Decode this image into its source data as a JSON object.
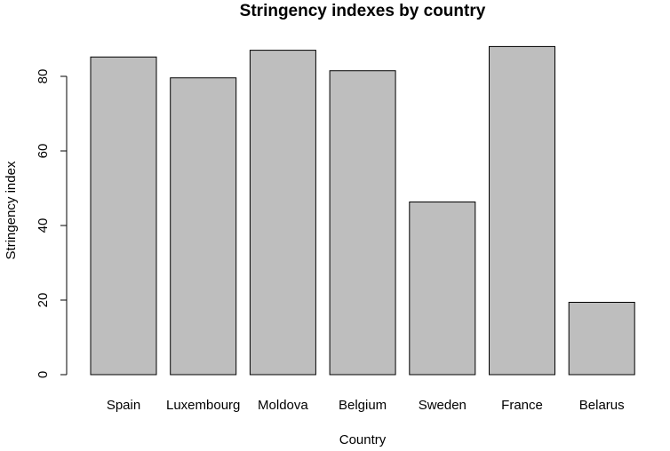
{
  "chart_data": {
    "type": "bar",
    "title": "Stringency indexes by country",
    "xlabel": "Country",
    "ylabel": "Stringency index",
    "categories": [
      "Spain",
      "Luxembourg",
      "Moldova",
      "Belgium",
      "Sweden",
      "France",
      "Belarus"
    ],
    "values": [
      85.2,
      79.6,
      87.0,
      81.5,
      46.3,
      88.0,
      19.4
    ],
    "ylim": [
      0,
      88
    ],
    "yticks": [
      0,
      20,
      40,
      60,
      80
    ],
    "bar_color": "#bebebe",
    "grid": false,
    "legend": "none"
  }
}
